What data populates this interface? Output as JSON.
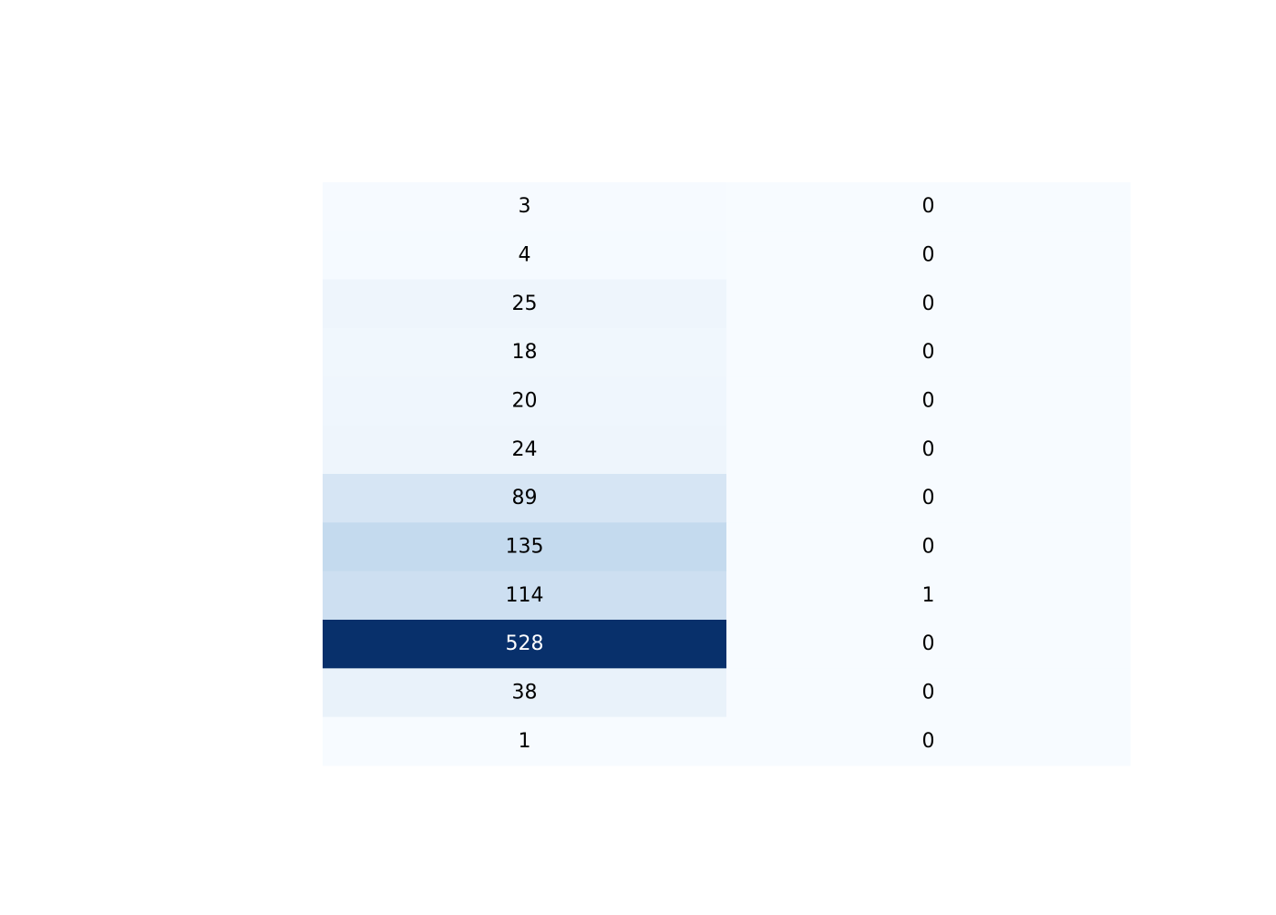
{
  "chart_data": {
    "type": "heatmap",
    "title": "",
    "xlabel": "",
    "ylabel": "",
    "columns": 2,
    "rows": 12,
    "z": [
      [
        3,
        0
      ],
      [
        4,
        0
      ],
      [
        25,
        0
      ],
      [
        18,
        0
      ],
      [
        20,
        0
      ],
      [
        24,
        0
      ],
      [
        89,
        0
      ],
      [
        135,
        0
      ],
      [
        114,
        1
      ],
      [
        528,
        0
      ],
      [
        38,
        0
      ],
      [
        1,
        0
      ]
    ],
    "zrange": [
      0,
      528
    ],
    "colorscale": "Blues",
    "colors": {
      "low": "#f7fbff",
      "mid1": "#deebf7",
      "mid2": "#c6dbef",
      "mid3": "#9ecae1",
      "high": "#08306b",
      "text_dark": "#000000",
      "text_light": "#ffffff"
    },
    "show_colorbar": false,
    "show_axes": false,
    "show_cell_text": true,
    "grid": false
  }
}
